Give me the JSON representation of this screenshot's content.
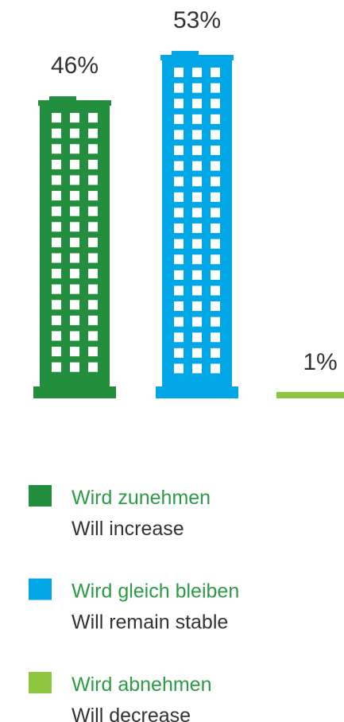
{
  "chart_data": {
    "type": "bar",
    "categories": [
      "Wird zunehmen",
      "Wird gleich bleiben",
      "Wird abnehmen"
    ],
    "translations": [
      "Will increase",
      "Will remain stable",
      "Will decrease"
    ],
    "values": [
      46,
      53,
      1
    ],
    "value_labels": [
      "46%",
      "53%",
      "1%"
    ],
    "colors": [
      "#238f3e",
      "#00a6e6",
      "#8dc63f"
    ],
    "legend_text_color": "#2e9a48"
  }
}
